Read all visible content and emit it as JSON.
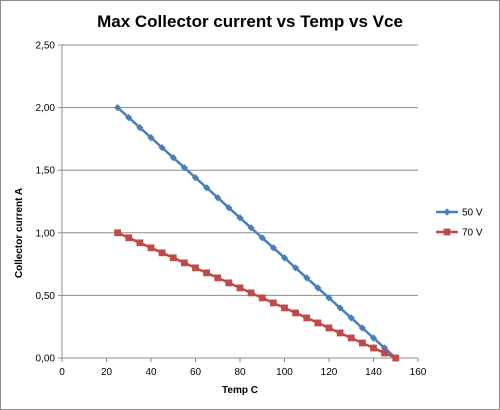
{
  "chart_data": {
    "type": "line",
    "title": "Max Collector current vs Temp vs Vce",
    "xlabel": "Temp C",
    "ylabel": "Collector current A",
    "xlim": [
      0,
      160
    ],
    "ylim": [
      0,
      2.5
    ],
    "x_ticks": [
      "0",
      "20",
      "40",
      "60",
      "80",
      "100",
      "120",
      "140",
      "160"
    ],
    "y_ticks": [
      "0,00",
      "0,50",
      "1,00",
      "1,50",
      "2,00",
      "2,50"
    ],
    "grid": "horizontal",
    "legend_position": "right",
    "series": [
      {
        "name": "50 V",
        "color": "#4a7ebb",
        "marker": "diamond",
        "x": [
          25,
          30,
          35,
          40,
          45,
          50,
          55,
          60,
          65,
          70,
          75,
          80,
          85,
          90,
          95,
          100,
          105,
          110,
          115,
          120,
          125,
          130,
          135,
          140,
          145,
          150
        ],
        "y": [
          2.0,
          1.92,
          1.84,
          1.76,
          1.68,
          1.6,
          1.52,
          1.44,
          1.36,
          1.28,
          1.2,
          1.12,
          1.04,
          0.96,
          0.88,
          0.8,
          0.72,
          0.64,
          0.56,
          0.48,
          0.4,
          0.32,
          0.24,
          0.16,
          0.08,
          0.0
        ]
      },
      {
        "name": "70 V",
        "color": "#be4b48",
        "marker": "square",
        "x": [
          25,
          30,
          35,
          40,
          45,
          50,
          55,
          60,
          65,
          70,
          75,
          80,
          85,
          90,
          95,
          100,
          105,
          110,
          115,
          120,
          125,
          130,
          135,
          140,
          145,
          150
        ],
        "y": [
          1.0,
          0.96,
          0.92,
          0.88,
          0.84,
          0.8,
          0.76,
          0.72,
          0.68,
          0.64,
          0.6,
          0.56,
          0.52,
          0.48,
          0.44,
          0.4,
          0.36,
          0.32,
          0.28,
          0.24,
          0.2,
          0.16,
          0.12,
          0.08,
          0.04,
          0.0
        ]
      }
    ]
  }
}
